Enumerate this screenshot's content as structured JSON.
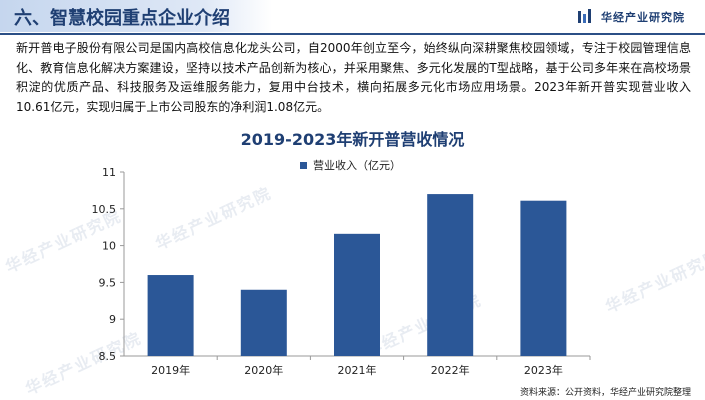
{
  "header": {
    "title": "六、智慧校园重点企业介绍",
    "brand": "华经产业研究院"
  },
  "intro": "新开普电子股份有限公司是国内高校信息化龙头公司，自2000年创立至今，始终纵向深耕聚焦校园领域，专注于校园管理信息化、教育信息化解决方案建设，坚持以技术产品创新为核心，并采用聚焦、多元化发展的T型战略，基于公司多年来在高校场景积淀的优质产品、科技服务及运维服务能力，复用中台技术，横向拓展多元化市场应用场景。2023年新开普实现营业收入10.61亿元，实现归属于上市公司股东的净利润1.08亿元。",
  "chart_data": {
    "type": "bar",
    "title": "2019-2023年新开普营收情况",
    "categories": [
      "2019年",
      "2020年",
      "2021年",
      "2022年",
      "2023年"
    ],
    "series": [
      {
        "name": "营业收入（亿元）",
        "values": [
          9.6,
          9.4,
          10.16,
          10.7,
          10.61
        ]
      }
    ],
    "ylim": [
      8.5,
      11
    ],
    "yticks": [
      "8.5",
      "9",
      "9.5",
      "10",
      "10.5",
      "11"
    ],
    "grid": false,
    "legend": "top-center",
    "bar_color": "#2b5797"
  },
  "source": "资料来源：公开资料，华经产业研究院整理",
  "watermark": "华经产业研究院",
  "colors": {
    "accent": "#1f3f73",
    "bar": "#2b5797"
  }
}
